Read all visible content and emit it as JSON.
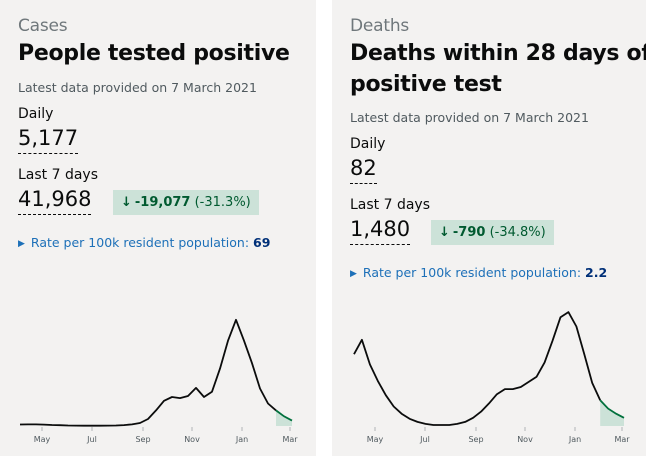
{
  "cards": [
    {
      "caption": "Cases",
      "title_lines": [
        "People tested positive"
      ],
      "updated": "Latest data provided on 7 March 2021",
      "daily_label": "Daily",
      "daily_value": "5,177",
      "week_label": "Last 7 days",
      "week_value": "41,968",
      "change": {
        "arrow": "↓",
        "value": "-19,077",
        "percent": "(-31.3%)"
      },
      "rate": {
        "label": "Rate per 100k resident population:",
        "value": "69"
      },
      "chart_data": {
        "type": "line",
        "x_ticks": [
          "May",
          "Jul",
          "Sep",
          "Nov",
          "Jan",
          "Mar"
        ],
        "y": [
          1.4,
          1.5,
          1.5,
          1.3,
          0.9,
          0.7,
          0.5,
          0.4,
          0.3,
          0.3,
          0.3,
          0.4,
          0.5,
          0.8,
          1.5,
          2.8,
          6.5,
          14.5,
          23.5,
          27.0,
          26.0,
          28.0,
          35.5,
          27.0,
          32.0,
          53.5,
          79.5,
          99.0,
          79.5,
          58.5,
          35.0,
          21.0,
          14.5,
          9.0,
          5.0
        ],
        "highlight_from_index": 32,
        "ylim": [
          0,
          110
        ]
      }
    },
    {
      "caption": "Deaths",
      "title_lines": [
        "Deaths within 28 days of",
        "positive test"
      ],
      "updated": "Latest data provided on 7 March 2021",
      "daily_label": "Daily",
      "daily_value": "82",
      "week_label": "Last 7 days",
      "week_value": "1,480",
      "change": {
        "arrow": "↓",
        "value": "-790",
        "percent": "(-34.8%)"
      },
      "rate": {
        "label": "Rate per 100k resident population:",
        "value": "2.2"
      },
      "chart_data": {
        "type": "line",
        "x_ticks": [
          "May",
          "Jul",
          "Sep",
          "Nov",
          "Jan",
          "Mar"
        ],
        "y": [
          70,
          84,
          60,
          44,
          30,
          19,
          12,
          7,
          4,
          2,
          1,
          1,
          1,
          2,
          4,
          8,
          14,
          22,
          31,
          36,
          36,
          38,
          43,
          48,
          62,
          83,
          106,
          111,
          97,
          70,
          42,
          25,
          17,
          12,
          8
        ],
        "highlight_from_index": 31,
        "ylim": [
          0,
          115
        ]
      }
    }
  ],
  "colors": {
    "line": "#0b0c0c",
    "highlight_fill": "#cce2d8",
    "highlight_line": "#00703c"
  }
}
